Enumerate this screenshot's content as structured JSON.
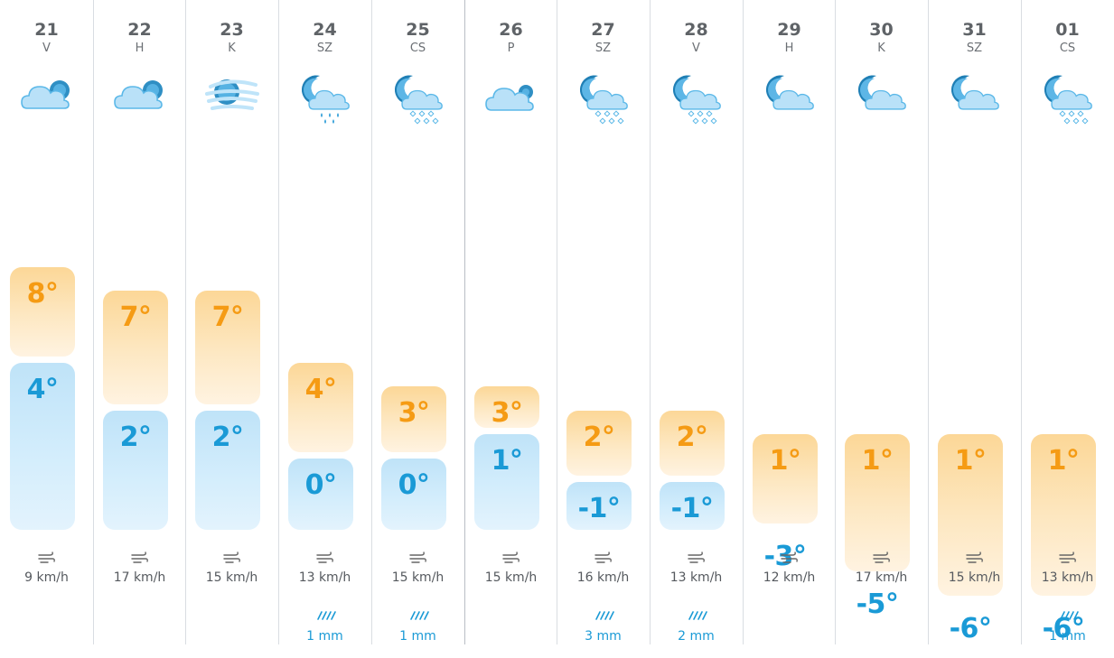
{
  "colors": {
    "high": "#f59b14",
    "low": "#1a9ad6",
    "text": "#5f6367"
  },
  "days": [
    {
      "date": "21",
      "weekday": "V",
      "icon": "cloud-sun-icon",
      "high": "8°",
      "low": "4°",
      "high_value": 8,
      "low_value": 4,
      "wind": "9 km/h",
      "rain": ""
    },
    {
      "date": "22",
      "weekday": "H",
      "icon": "cloud-sun-icon",
      "high": "7°",
      "low": "2°",
      "high_value": 7,
      "low_value": 2,
      "wind": "17 km/h",
      "rain": ""
    },
    {
      "date": "23",
      "weekday": "K",
      "icon": "fog-icon",
      "high": "7°",
      "low": "2°",
      "high_value": 7,
      "low_value": 2,
      "wind": "15 km/h",
      "rain": ""
    },
    {
      "date": "24",
      "weekday": "SZ",
      "icon": "moon-cloud-rain-icon",
      "high": "4°",
      "low": "0°",
      "high_value": 4,
      "low_value": 0,
      "wind": "13 km/h",
      "rain": "1 mm"
    },
    {
      "date": "25",
      "weekday": "CS",
      "icon": "moon-cloud-snow-icon",
      "high": "3°",
      "low": "0°",
      "high_value": 3,
      "low_value": 0,
      "wind": "15 km/h",
      "rain": "1 mm"
    },
    {
      "date": "26",
      "weekday": "P",
      "icon": "cloud-icon",
      "high": "3°",
      "low": "1°",
      "high_value": 3,
      "low_value": 1,
      "wind": "15 km/h",
      "rain": ""
    },
    {
      "date": "27",
      "weekday": "SZ",
      "icon": "moon-cloud-snow-icon",
      "high": "2°",
      "low": "-1°",
      "high_value": 2,
      "low_value": -1,
      "wind": "16 km/h",
      "rain": "3 mm"
    },
    {
      "date": "28",
      "weekday": "V",
      "icon": "moon-cloud-snow-icon",
      "high": "2°",
      "low": "-1°",
      "high_value": 2,
      "low_value": -1,
      "wind": "13 km/h",
      "rain": "2 mm"
    },
    {
      "date": "29",
      "weekday": "H",
      "icon": "moon-cloud-icon",
      "high": "1°",
      "low": "-3°",
      "high_value": 1,
      "low_value": -3,
      "wind": "12 km/h",
      "rain": ""
    },
    {
      "date": "30",
      "weekday": "K",
      "icon": "moon-cloud-icon",
      "high": "1°",
      "low": "-5°",
      "high_value": 1,
      "low_value": -5,
      "wind": "17 km/h",
      "rain": ""
    },
    {
      "date": "31",
      "weekday": "SZ",
      "icon": "moon-cloud-icon",
      "high": "1°",
      "low": "-6°",
      "high_value": 1,
      "low_value": -6,
      "wind": "15 km/h",
      "rain": ""
    },
    {
      "date": "01",
      "weekday": "CS",
      "icon": "moon-cloud-snow-icon",
      "high": "1°",
      "low": "-6°",
      "high_value": 1,
      "low_value": -6,
      "wind": "13 km/h",
      "rain": "1 mm"
    }
  ]
}
